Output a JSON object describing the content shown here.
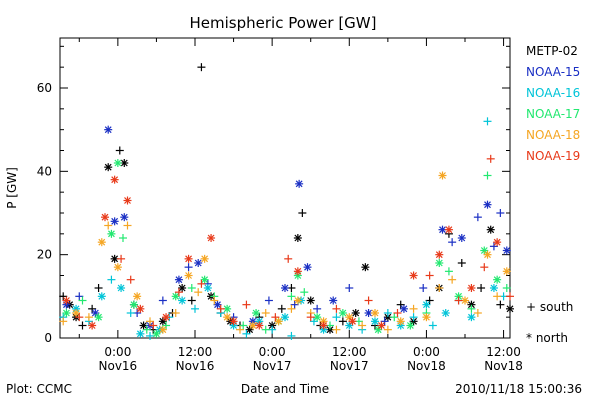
{
  "chart_data": {
    "type": "scatter",
    "title": "Hemispheric Power [GW]",
    "xlabel": "Date and Time",
    "ylabel": "P [GW]",
    "xlim": [
      -9,
      61
    ],
    "ylim": [
      0,
      72
    ],
    "x_unit": "hours after 2010-11-16 00:00 UT",
    "x_ticks_major": [
      0,
      12,
      24,
      36,
      48,
      60
    ],
    "x_ticks_minor": [
      -6,
      6,
      18,
      30,
      42,
      54
    ],
    "x_tick_labels": [
      {
        "x": 0,
        "time": "0:00",
        "date": "Nov16"
      },
      {
        "x": 12,
        "time": "12:00",
        "date": "Nov16"
      },
      {
        "x": 24,
        "time": "0:00",
        "date": "Nov17"
      },
      {
        "x": 36,
        "time": "12:00",
        "date": "Nov17"
      },
      {
        "x": 48,
        "time": "0:00",
        "date": "Nov18"
      },
      {
        "x": 60,
        "time": "12:00",
        "date": "Nov18"
      }
    ],
    "y_ticks": [
      0,
      20,
      40,
      60
    ],
    "y_minor_step": 5,
    "grid": false,
    "legend_position": "right",
    "marker_key": [
      {
        "symbol": "+",
        "label": "south"
      },
      {
        "symbol": "*",
        "label": "north"
      }
    ],
    "series": [
      {
        "name": "METP-02",
        "color": "#000000",
        "points": [
          [
            -8.5,
            10,
            "+"
          ],
          [
            -7.5,
            8,
            "*"
          ],
          [
            -6.5,
            5,
            "*"
          ],
          [
            -5.5,
            3,
            "+"
          ],
          [
            -4,
            7,
            "+"
          ],
          [
            -3,
            12,
            "+"
          ],
          [
            -1.5,
            41,
            "*"
          ],
          [
            -0.5,
            19,
            "*"
          ],
          [
            0.3,
            45,
            "+"
          ],
          [
            1,
            42,
            "*"
          ],
          [
            2.5,
            8,
            "+"
          ],
          [
            4,
            3,
            "*"
          ],
          [
            5.5,
            2,
            "+"
          ],
          [
            7,
            4,
            "*"
          ],
          [
            8.5,
            6,
            "+"
          ],
          [
            10,
            12,
            "*"
          ],
          [
            11.5,
            9,
            "+"
          ],
          [
            13,
            65,
            "+"
          ],
          [
            14.5,
            10,
            "*"
          ],
          [
            16,
            6,
            "+"
          ],
          [
            17.5,
            4,
            "*"
          ],
          [
            19,
            3,
            "+"
          ],
          [
            20.5,
            2,
            "*"
          ],
          [
            22,
            5,
            "+"
          ],
          [
            24,
            3,
            "*"
          ],
          [
            25.5,
            7,
            "+"
          ],
          [
            27,
            12,
            "+"
          ],
          [
            28,
            24,
            "*"
          ],
          [
            28.7,
            30,
            "+"
          ],
          [
            30,
            9,
            "*"
          ],
          [
            31.5,
            3,
            "+"
          ],
          [
            33,
            2,
            "*"
          ],
          [
            35,
            4,
            "+"
          ],
          [
            37,
            6,
            "*"
          ],
          [
            38.5,
            17,
            "*"
          ],
          [
            40,
            3,
            "+"
          ],
          [
            42,
            5,
            "*"
          ],
          [
            44,
            8,
            "+"
          ],
          [
            46,
            4,
            "*"
          ],
          [
            48.5,
            9,
            "+"
          ],
          [
            50,
            12,
            "*"
          ],
          [
            51.5,
            25,
            "+"
          ],
          [
            53.5,
            18,
            "+"
          ],
          [
            55,
            8,
            "*"
          ],
          [
            56.5,
            12,
            "+"
          ],
          [
            58,
            26,
            "*"
          ],
          [
            59.5,
            8,
            "+"
          ],
          [
            61,
            7,
            "*"
          ]
        ]
      },
      {
        "name": "NOAA-15",
        "color": "#1a2fc4",
        "points": [
          [
            -8,
            8,
            "*"
          ],
          [
            -6,
            10,
            "+"
          ],
          [
            -3.5,
            6,
            "*"
          ],
          [
            -1.5,
            50,
            "*"
          ],
          [
            -0.5,
            28,
            "*"
          ],
          [
            1,
            29,
            "*"
          ],
          [
            3,
            6,
            "+"
          ],
          [
            5,
            3,
            "*"
          ],
          [
            7,
            9,
            "+"
          ],
          [
            9.5,
            14,
            "*"
          ],
          [
            11,
            17,
            "+"
          ],
          [
            12.5,
            18,
            "*"
          ],
          [
            14,
            13,
            "+"
          ],
          [
            15.5,
            8,
            "*"
          ],
          [
            18,
            5,
            "+"
          ],
          [
            21,
            4,
            "*"
          ],
          [
            23.5,
            9,
            "+"
          ],
          [
            26,
            12,
            "*"
          ],
          [
            27.5,
            8,
            "+"
          ],
          [
            28.2,
            37,
            "*"
          ],
          [
            29.5,
            17,
            "*"
          ],
          [
            31,
            7,
            "+"
          ],
          [
            33.5,
            9,
            "*"
          ],
          [
            36,
            12,
            "+"
          ],
          [
            39,
            6,
            "*"
          ],
          [
            41.5,
            4,
            "+"
          ],
          [
            44.5,
            7,
            "*"
          ],
          [
            47.5,
            12,
            "+"
          ],
          [
            50.5,
            26,
            "*"
          ],
          [
            52,
            23,
            "+"
          ],
          [
            53.5,
            24,
            "*"
          ],
          [
            56,
            29,
            "+"
          ],
          [
            57.5,
            32,
            "*"
          ],
          [
            58.5,
            22,
            "+"
          ],
          [
            59.5,
            30,
            "+"
          ],
          [
            60.5,
            21,
            "*"
          ],
          [
            61.5,
            17,
            "*"
          ]
        ]
      },
      {
        "name": "NOAA-16",
        "color": "#00c4d8",
        "points": [
          [
            -8.5,
            5,
            "+"
          ],
          [
            -6.5,
            7,
            "*"
          ],
          [
            -4.5,
            4,
            "+"
          ],
          [
            -2.5,
            10,
            "*"
          ],
          [
            -1,
            14,
            "+"
          ],
          [
            0.5,
            12,
            "*"
          ],
          [
            2,
            6,
            "+"
          ],
          [
            3.5,
            1,
            "*"
          ],
          [
            5,
            0.5,
            "+"
          ],
          [
            6.5,
            2,
            "*"
          ],
          [
            8,
            5,
            "+"
          ],
          [
            10,
            9,
            "*"
          ],
          [
            12,
            7,
            "+"
          ],
          [
            14,
            12,
            "*"
          ],
          [
            16,
            6,
            "+"
          ],
          [
            18,
            3,
            "*"
          ],
          [
            20,
            1,
            "+"
          ],
          [
            22,
            4,
            "*"
          ],
          [
            24,
            2,
            "+"
          ],
          [
            26,
            5,
            "*"
          ],
          [
            27,
            0.5,
            "+"
          ],
          [
            28.5,
            9,
            "*"
          ],
          [
            30.5,
            4,
            "+"
          ],
          [
            32,
            2,
            "*"
          ],
          [
            34,
            5,
            "+"
          ],
          [
            36,
            3,
            "*"
          ],
          [
            38,
            2,
            "+"
          ],
          [
            40,
            4,
            "*"
          ],
          [
            42,
            6,
            "+"
          ],
          [
            44,
            3,
            "*"
          ],
          [
            46,
            5,
            "+"
          ],
          [
            48,
            8,
            "*"
          ],
          [
            49,
            3,
            "+"
          ],
          [
            51,
            6,
            "*"
          ],
          [
            53,
            9,
            "+"
          ],
          [
            55,
            5,
            "*"
          ],
          [
            57.5,
            52,
            "+"
          ],
          [
            58.5,
            12,
            "*"
          ],
          [
            60,
            10,
            "+"
          ],
          [
            61.5,
            15,
            "*"
          ]
        ]
      },
      {
        "name": "NOAA-17",
        "color": "#22e870",
        "points": [
          [
            -8,
            6,
            "*"
          ],
          [
            -5.5,
            9,
            "+"
          ],
          [
            -3,
            5,
            "*"
          ],
          [
            -1,
            25,
            "*"
          ],
          [
            0,
            42,
            "*"
          ],
          [
            0.8,
            24,
            "+"
          ],
          [
            2.5,
            8,
            "*"
          ],
          [
            4.5,
            2,
            "+"
          ],
          [
            6,
            1,
            "*"
          ],
          [
            7.5,
            3,
            "+"
          ],
          [
            9,
            10,
            "*"
          ],
          [
            11.5,
            12,
            "+"
          ],
          [
            13.5,
            14,
            "*"
          ],
          [
            15,
            10,
            "+"
          ],
          [
            17,
            7,
            "*"
          ],
          [
            19.5,
            3,
            "+"
          ],
          [
            21.5,
            6,
            "*"
          ],
          [
            23,
            2,
            "+"
          ],
          [
            25,
            4,
            "*"
          ],
          [
            27,
            10,
            "+"
          ],
          [
            28,
            15,
            "*"
          ],
          [
            29,
            11,
            "+"
          ],
          [
            31,
            5,
            "*"
          ],
          [
            33,
            3,
            "+"
          ],
          [
            35,
            6,
            "*"
          ],
          [
            37.5,
            4,
            "+"
          ],
          [
            40.5,
            2,
            "*"
          ],
          [
            43,
            5,
            "+"
          ],
          [
            45.5,
            3,
            "*"
          ],
          [
            48,
            6,
            "+"
          ],
          [
            50,
            18,
            "*"
          ],
          [
            51.5,
            16,
            "+"
          ],
          [
            53,
            10,
            "*"
          ],
          [
            55,
            7,
            "+"
          ],
          [
            57,
            21,
            "*"
          ],
          [
            57.5,
            39,
            "+"
          ],
          [
            59,
            14,
            "*"
          ],
          [
            60.5,
            12,
            "+"
          ],
          [
            62,
            14,
            "*"
          ]
        ]
      },
      {
        "name": "NOAA-18",
        "color": "#f5a623",
        "points": [
          [
            -8.5,
            4,
            "+"
          ],
          [
            -6.5,
            6,
            "*"
          ],
          [
            -4.5,
            5,
            "+"
          ],
          [
            -2.5,
            23,
            "*"
          ],
          [
            -1.5,
            27,
            "+"
          ],
          [
            0,
            17,
            "*"
          ],
          [
            1.5,
            27,
            "+"
          ],
          [
            3,
            10,
            "*"
          ],
          [
            5,
            4,
            "+"
          ],
          [
            7,
            2,
            "*"
          ],
          [
            9,
            6,
            "+"
          ],
          [
            11,
            15,
            "*"
          ],
          [
            12.5,
            11,
            "+"
          ],
          [
            13.5,
            19,
            "*"
          ],
          [
            15,
            9,
            "+"
          ],
          [
            17,
            5,
            "*"
          ],
          [
            19,
            2,
            "+"
          ],
          [
            21,
            3,
            "*"
          ],
          [
            23,
            6,
            "+"
          ],
          [
            25,
            4,
            "*"
          ],
          [
            27,
            7,
            "+"
          ],
          [
            28,
            9,
            "*"
          ],
          [
            30,
            6,
            "+"
          ],
          [
            32,
            4,
            "*"
          ],
          [
            34,
            2,
            "+"
          ],
          [
            36,
            5,
            "*"
          ],
          [
            38,
            3,
            "+"
          ],
          [
            40,
            6,
            "*"
          ],
          [
            42,
            2,
            "+"
          ],
          [
            44,
            4,
            "*"
          ],
          [
            46,
            7,
            "+"
          ],
          [
            48,
            5,
            "*"
          ],
          [
            50,
            12,
            "+"
          ],
          [
            50.5,
            39,
            "*"
          ],
          [
            52,
            14,
            "+"
          ],
          [
            54,
            9,
            "*"
          ],
          [
            56,
            6,
            "+"
          ],
          [
            57.5,
            20,
            "*"
          ],
          [
            59,
            10,
            "+"
          ],
          [
            60.5,
            16,
            "*"
          ],
          [
            62,
            13,
            "+"
          ]
        ]
      },
      {
        "name": "NOAA-19",
        "color": "#e83a1a",
        "points": [
          [
            -8,
            9,
            "*"
          ],
          [
            -6,
            5,
            "+"
          ],
          [
            -4,
            3,
            "*"
          ],
          [
            -2,
            29,
            "*"
          ],
          [
            -0.5,
            38,
            "*"
          ],
          [
            0.5,
            19,
            "+"
          ],
          [
            1.5,
            33,
            "*"
          ],
          [
            2,
            14,
            "+"
          ],
          [
            3.5,
            7,
            "*"
          ],
          [
            5.5,
            3,
            "+"
          ],
          [
            7.5,
            5,
            "*"
          ],
          [
            9.5,
            11,
            "+"
          ],
          [
            11,
            19,
            "*"
          ],
          [
            13,
            13,
            "+"
          ],
          [
            14.5,
            24,
            "*"
          ],
          [
            16,
            7,
            "+"
          ],
          [
            18,
            4,
            "*"
          ],
          [
            20,
            8,
            "+"
          ],
          [
            22,
            3,
            "*"
          ],
          [
            24.5,
            5,
            "+"
          ],
          [
            26.5,
            19,
            "+"
          ],
          [
            28,
            16,
            "*"
          ],
          [
            30,
            5,
            "+"
          ],
          [
            32,
            3,
            "*"
          ],
          [
            34,
            7,
            "+"
          ],
          [
            36.5,
            4,
            "*"
          ],
          [
            39,
            9,
            "+"
          ],
          [
            41,
            3,
            "*"
          ],
          [
            43.5,
            6,
            "+"
          ],
          [
            46,
            15,
            "*"
          ],
          [
            48.5,
            15,
            "+"
          ],
          [
            50,
            20,
            "*"
          ],
          [
            51.5,
            26,
            "*"
          ],
          [
            53,
            9,
            "+"
          ],
          [
            55,
            12,
            "*"
          ],
          [
            57,
            17,
            "+"
          ],
          [
            58,
            43,
            "+"
          ],
          [
            59,
            23,
            "*"
          ],
          [
            61,
            10,
            "+"
          ],
          [
            62,
            9,
            "*"
          ]
        ]
      }
    ]
  },
  "footer": {
    "left": "Plot: CCMC",
    "right": "2010/11/18 15:00:36"
  }
}
